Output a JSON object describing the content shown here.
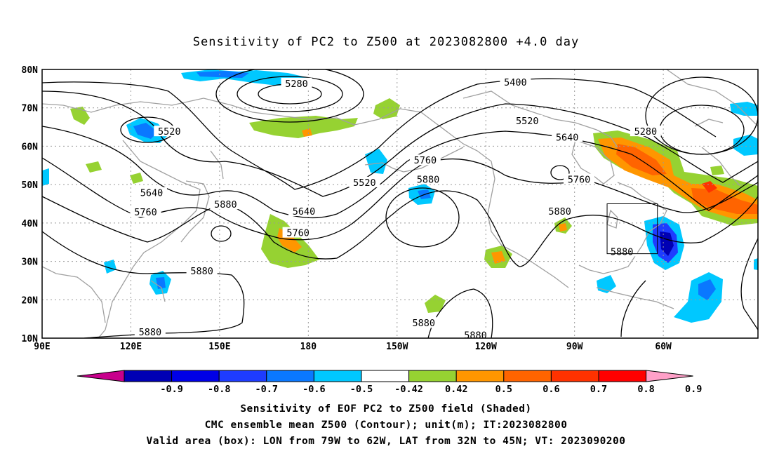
{
  "title": "Sensitivity of PC2 to Z500 at 2023082800 +4.0 day",
  "lat_labels": [
    "80N",
    "70N",
    "60N",
    "50N",
    "40N",
    "30N",
    "20N",
    "10N"
  ],
  "lon_labels": [
    "90E",
    "120E",
    "150E",
    "180",
    "150W",
    "120W",
    "90W",
    "60W"
  ],
  "contour_labels": [
    {
      "text": "5280",
      "lon": 176,
      "lat": 76.2
    },
    {
      "text": "5400",
      "lon": -110,
      "lat": 76.5
    },
    {
      "text": "5520",
      "lon": 133,
      "lat": 63.7
    },
    {
      "text": "5520",
      "lon": -106,
      "lat": 66.5
    },
    {
      "text": "5280",
      "lon": -66,
      "lat": 63.7
    },
    {
      "text": "5640",
      "lon": -92.5,
      "lat": 62.2
    },
    {
      "text": "5760",
      "lon": -140.5,
      "lat": 56.2
    },
    {
      "text": "5880",
      "lon": -139.5,
      "lat": 51.2
    },
    {
      "text": "5520",
      "lon": -161,
      "lat": 50.4
    },
    {
      "text": "5760",
      "lon": -88.5,
      "lat": 51.2
    },
    {
      "text": "5640",
      "lon": 127,
      "lat": 47.7
    },
    {
      "text": "5880",
      "lon": 152,
      "lat": 44.7
    },
    {
      "text": "5760",
      "lon": 125,
      "lat": 42.7
    },
    {
      "text": "5640",
      "lon": 178.5,
      "lat": 42.9
    },
    {
      "text": "5880",
      "lon": -95,
      "lat": 42.9
    },
    {
      "text": "5760",
      "lon": 176.5,
      "lat": 37.3
    },
    {
      "text": "5880",
      "lon": -74,
      "lat": 32.4
    },
    {
      "text": "5880",
      "lon": 144,
      "lat": 27.4
    },
    {
      "text": "5880",
      "lon": -141,
      "lat": 13.8
    },
    {
      "text": "5880",
      "lon": 126.5,
      "lat": 11.5
    },
    {
      "text": "5880",
      "lon": -123.5,
      "lat": 10.6
    }
  ],
  "valid_box": {
    "lon_from": -79,
    "lon_to": -62,
    "lat_from": 32,
    "lat_to": 45
  },
  "colorbar": {
    "labels": [
      "-0.9",
      "-0.8",
      "-0.7",
      "-0.6",
      "-0.5",
      "-0.42",
      "0.42",
      "0.5",
      "0.6",
      "0.7",
      "0.8",
      "0.9"
    ],
    "colors": [
      "#c8008c",
      "#0000b4",
      "#0000e6",
      "#1e3cff",
      "#0a78ff",
      "#00c8ff",
      "#ffffff",
      "#96d232",
      "#ff9600",
      "#ff6400",
      "#ff3200",
      "#ff0000",
      "#ffa0c8"
    ]
  },
  "footer": {
    "line1": "Sensitivity of EOF PC2 to Z500 field (Shaded)",
    "line2": "CMC ensemble mean Z500 (Contour); unit(m); IT:2023082800",
    "line3": "Valid area (box): LON from 79W to 62W, LAT from 32N to 45N; VT: 2023090200"
  }
}
